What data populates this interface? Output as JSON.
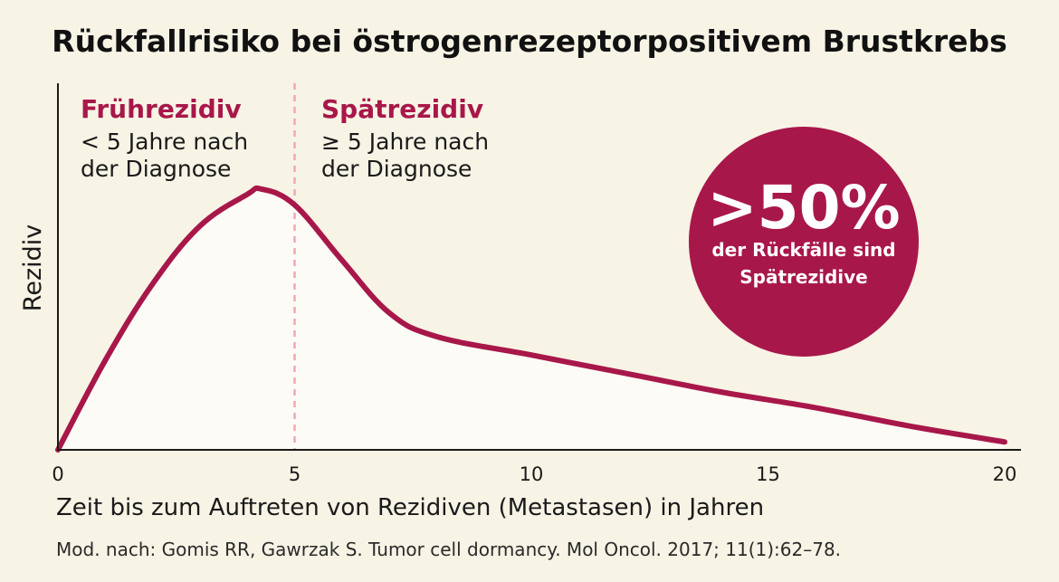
{
  "chart_data": {
    "type": "area",
    "title": "Rückfallrisiko bei östrogenrezeptorpositivem Brustkrebs",
    "xlabel": "Zeit bis zum Auftreten von Rezidiven (Metastasen) in Jahren",
    "ylabel": "Rezidiv",
    "xlim": [
      0,
      20
    ],
    "x_ticks": [
      "0",
      "5",
      "10",
      "15",
      "20"
    ],
    "grid": false,
    "divider_x": 5,
    "curve": {
      "x": [
        0,
        1,
        2,
        3,
        4,
        4.3,
        5,
        6,
        7,
        8,
        10,
        12,
        14,
        16,
        18,
        20
      ],
      "y": [
        0,
        0.34,
        0.63,
        0.85,
        0.97,
        0.99,
        0.93,
        0.72,
        0.52,
        0.43,
        0.36,
        0.29,
        0.22,
        0.16,
        0.09,
        0.03
      ]
    },
    "phases": [
      {
        "name": "Frührezidiv",
        "desc_line1": "< 5 Jahre nach",
        "desc_line2": "der Diagnose"
      },
      {
        "name": "Spätrezidiv",
        "desc_line1": "≥ 5 Jahre nach",
        "desc_line2": "der Diagnose"
      }
    ],
    "annotation": {
      "big": ">50%",
      "line1": "der Rückfälle sind",
      "line2": "Spätrezidive"
    }
  },
  "source": "Mod. nach: Gomis RR, Gawrzak S. Tumor cell dormancy. Mol Oncol. 2017; 11(1):62–78.",
  "colors": {
    "background": "#f7f3e5",
    "accent": "#a8174a",
    "fill": "#fcfbf6",
    "divider": "#f3a6b6",
    "axis": "#1a1a1a"
  }
}
